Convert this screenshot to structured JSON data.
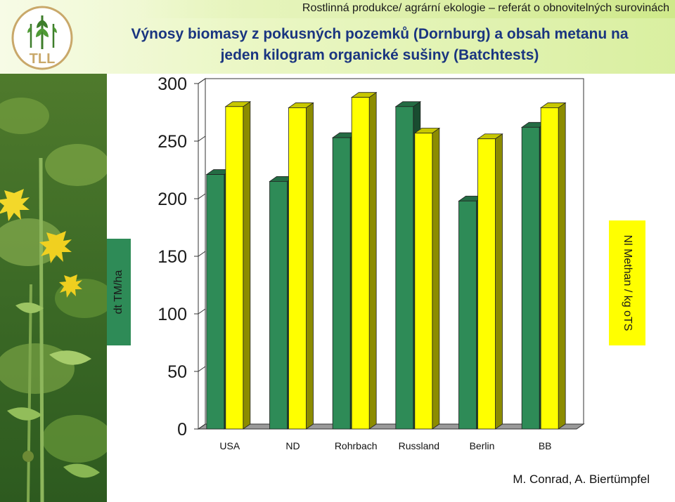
{
  "header": {
    "text": "Rostlinná produkce/ agrární ekologie – referát o obnovitelných  surovinách"
  },
  "title": {
    "line1": "Výnosy biomasy z pokusných pozemků (Dornburg) a obsah metanu na",
    "line2": "jeden kilogram organické sušiny (Batchtests)"
  },
  "logo": {
    "text": "TLL",
    "icon": "wheat-logo-icon"
  },
  "photo": {
    "icon": "sunflower-plant-photo"
  },
  "credit": "M. Conrad, A. Biertümpfel",
  "colors": {
    "green_series": "#2e8b57",
    "yellow_series": "#ffff00",
    "title": "#1a3580"
  },
  "chart_data": {
    "type": "bar",
    "categories": [
      "USA",
      "ND",
      "Rohrbach",
      "Russland",
      "Berlin",
      "BB"
    ],
    "series": [
      {
        "values": [
          221,
          215,
          253,
          280,
          198,
          262
        ],
        "color": "#2e8b57"
      },
      {
        "values": [
          280,
          279,
          288,
          257,
          252,
          279
        ],
        "color": "#ffff00"
      }
    ],
    "ylim": [
      0,
      300
    ],
    "yticks": [
      "0",
      "50",
      "100",
      "150",
      "200",
      "250",
      "300"
    ],
    "ylabel_left": "dt TM/ha",
    "ylabel_right": "Nl Methan / kg oTS",
    "grid": false,
    "style": "3d"
  }
}
